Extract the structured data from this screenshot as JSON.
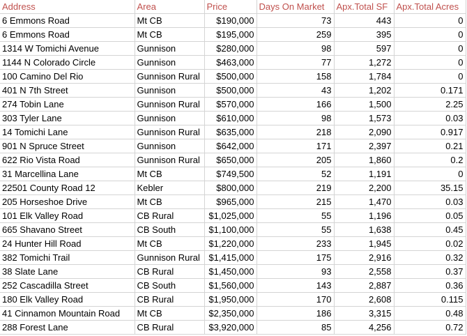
{
  "colors": {
    "header_text": "#c0504d",
    "cell_text": "#000000",
    "grid_line": "#d4d4d4",
    "background": "#ffffff"
  },
  "columns": [
    "Address",
    "Area",
    "Price",
    "Days On Market",
    "Apx.Total SF",
    "Apx.Total Acres"
  ],
  "rows": [
    [
      "6 Emmons Road",
      "Mt CB",
      "$190,000",
      "73",
      "443",
      "0"
    ],
    [
      "6 Emmons Road",
      "Mt CB",
      "$195,000",
      "259",
      "395",
      "0"
    ],
    [
      "1314 W Tomichi Avenue",
      "Gunnison",
      "$280,000",
      "98",
      "597",
      "0"
    ],
    [
      "1144 N Colorado Circle",
      "Gunnison",
      "$463,000",
      "77",
      "1,272",
      "0"
    ],
    [
      "100 Camino Del Rio",
      "Gunnison Rural",
      "$500,000",
      "158",
      "1,784",
      "0"
    ],
    [
      "401 N 7th Street",
      "Gunnison",
      "$500,000",
      "43",
      "1,202",
      "0.171"
    ],
    [
      "274 Tobin Lane",
      "Gunnison Rural",
      "$570,000",
      "166",
      "1,500",
      "2.25"
    ],
    [
      "303 Tyler Lane",
      "Gunnison",
      "$610,000",
      "98",
      "1,573",
      "0.03"
    ],
    [
      "14 Tomichi Lane",
      "Gunnison Rural",
      "$635,000",
      "218",
      "2,090",
      "0.917"
    ],
    [
      "901 N Spruce Street",
      "Gunnison",
      "$642,000",
      "171",
      "2,397",
      "0.21"
    ],
    [
      "622 Rio Vista Road",
      "Gunnison Rural",
      "$650,000",
      "205",
      "1,860",
      "0.2"
    ],
    [
      "31 Marcellina Lane",
      "Mt CB",
      "$749,500",
      "52",
      "1,191",
      "0"
    ],
    [
      "22501 County Road 12",
      "Kebler",
      "$800,000",
      "219",
      "2,200",
      "35.15"
    ],
    [
      "205 Horseshoe Drive",
      "Mt CB",
      "$965,000",
      "215",
      "1,470",
      "0.03"
    ],
    [
      "101 Elk Valley Road",
      "CB Rural",
      "$1,025,000",
      "55",
      "1,196",
      "0.05"
    ],
    [
      "665 Shavano Street",
      "CB South",
      "$1,100,000",
      "55",
      "1,638",
      "0.45"
    ],
    [
      "24 Hunter Hill Road",
      "Mt CB",
      "$1,220,000",
      "233",
      "1,945",
      "0.02"
    ],
    [
      "382 Tomichi Trail",
      "Gunnison Rural",
      "$1,415,000",
      "175",
      "2,916",
      "0.32"
    ],
    [
      "38 Slate Lane",
      "CB Rural",
      "$1,450,000",
      "93",
      "2,558",
      "0.37"
    ],
    [
      "252 Cascadilla Street",
      "CB South",
      "$1,560,000",
      "143",
      "2,887",
      "0.36"
    ],
    [
      "180 Elk Valley Road",
      "CB Rural",
      "$1,950,000",
      "170",
      "2,608",
      "0.115"
    ],
    [
      "41 Cinnamon Mountain Road",
      "Mt CB",
      "$2,350,000",
      "186",
      "3,315",
      "0.48"
    ],
    [
      "288 Forest Lane",
      "CB Rural",
      "$3,920,000",
      "85",
      "4,256",
      "0.72"
    ]
  ]
}
